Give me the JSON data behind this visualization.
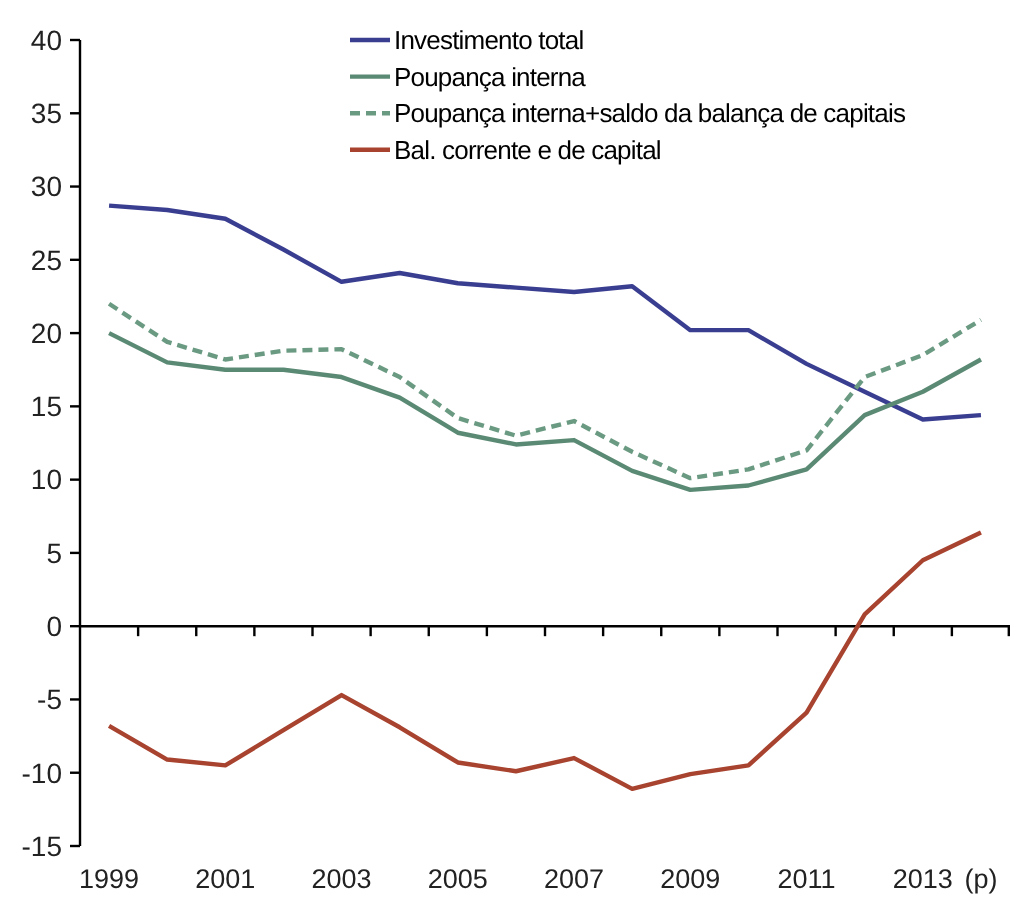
{
  "chart_data": {
    "type": "line",
    "categories": [
      "1999",
      null,
      "2001",
      null,
      "2003",
      null,
      "2005",
      null,
      "2007",
      null,
      "2009",
      null,
      "2011",
      null,
      "2013",
      "(p)"
    ],
    "series": [
      {
        "name": "Investimento total",
        "color": "#3a3e91",
        "line_style": "solid",
        "values": [
          28.7,
          28.4,
          27.8,
          25.7,
          23.5,
          24.1,
          23.4,
          23.1,
          22.8,
          23.2,
          20.2,
          20.2,
          17.9,
          16.0,
          14.1,
          14.4
        ]
      },
      {
        "name": "Poupança interna",
        "color": "#5b8a74",
        "line_style": "solid",
        "values": [
          20.0,
          18.0,
          17.5,
          17.5,
          17.0,
          15.6,
          13.2,
          12.4,
          12.7,
          10.6,
          9.3,
          9.6,
          10.7,
          14.4,
          16.0,
          18.2
        ]
      },
      {
        "name": "Poupança interna+saldo da balança de capitais",
        "color": "#6b9a82",
        "line_style": "dashed",
        "values": [
          22.0,
          19.4,
          18.2,
          18.8,
          18.9,
          17.0,
          14.2,
          13.0,
          14.0,
          11.9,
          10.1,
          10.7,
          12.0,
          17.0,
          18.5,
          20.9
        ]
      },
      {
        "name": "Bal. corrente e de capital",
        "color": "#a8432f",
        "line_style": "solid",
        "values": [
          -6.8,
          -9.1,
          -9.5,
          -7.1,
          -4.7,
          -6.9,
          -9.3,
          -9.9,
          -9.0,
          -11.1,
          -10.1,
          -9.5,
          -5.9,
          0.8,
          4.5,
          6.4
        ]
      }
    ],
    "ylim": [
      -15,
      40
    ],
    "yticks": [
      -15,
      -10,
      -5,
      0,
      5,
      10,
      15,
      20,
      25,
      30,
      35,
      40
    ],
    "legend": "top"
  }
}
